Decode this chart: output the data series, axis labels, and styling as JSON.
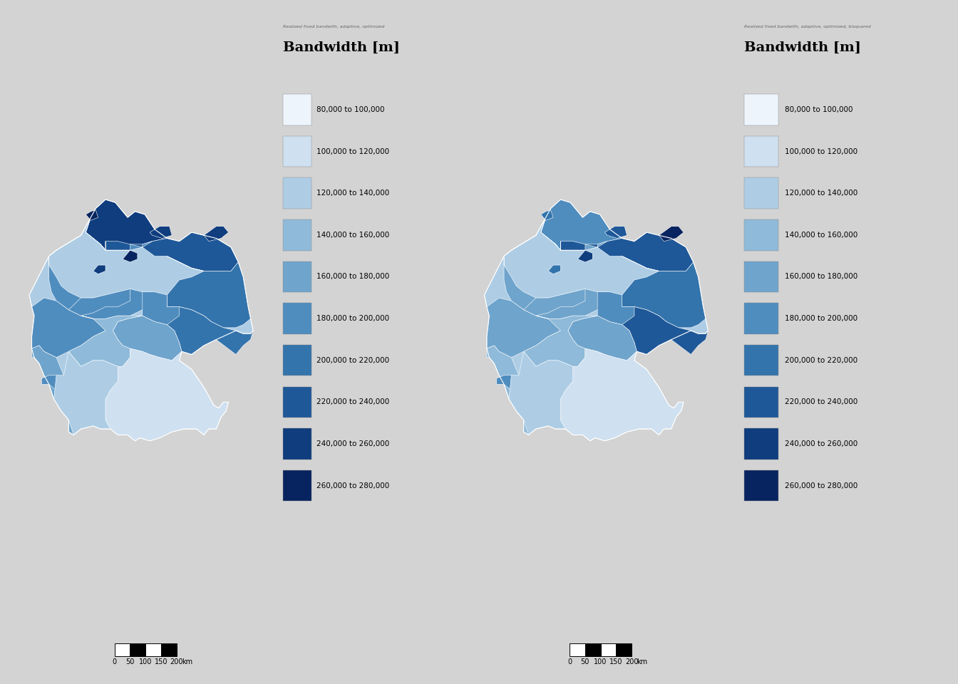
{
  "bg_color": "#cccccc",
  "panel_bg": "#cccccc",
  "legend_bg": "white",
  "legend1_title_small": "Realized fixed bandwith, adaptive, optimized",
  "legend2_title_small": "Realized fixed bandwith, adaptive, optimized, bisquared",
  "legend_title_big": "Bandwidth [m]",
  "legend_labels": [
    "80,000 to 100,000",
    "100,000 to 120,000",
    "120,000 to 140,000",
    "140,000 to 160,000",
    "160,000 to 180,000",
    "180,000 to 200,000",
    "200,000 to 220,000",
    "220,000 to 240,000",
    "240,000 to 260,000",
    "260,000 to 280,000"
  ],
  "legend_colors": [
    "#eef4fb",
    "#cfe0f0",
    "#aecde5",
    "#8fbad9",
    "#6fa4cc",
    "#508dbf",
    "#3474ad",
    "#1f5898",
    "#0f3d7e",
    "#082460"
  ],
  "scalebar_ticks": [
    "0",
    "50",
    "100",
    "150",
    "200"
  ],
  "scalebar_unit": "km"
}
